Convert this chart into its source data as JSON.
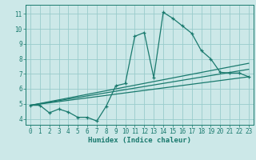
{
  "xlabel": "Humidex (Indice chaleur)",
  "bg_color": "#cce8e8",
  "grid_color": "#99cccc",
  "line_color": "#1a7a6e",
  "xlim": [
    -0.5,
    23.5
  ],
  "ylim": [
    3.6,
    11.6
  ],
  "xticks": [
    0,
    1,
    2,
    3,
    4,
    5,
    6,
    7,
    8,
    9,
    10,
    11,
    12,
    13,
    14,
    15,
    16,
    17,
    18,
    19,
    20,
    21,
    22,
    23
  ],
  "yticks": [
    4,
    5,
    6,
    7,
    8,
    9,
    10,
    11
  ],
  "line1_x": [
    0,
    1,
    2,
    3,
    4,
    5,
    6,
    7,
    8,
    9,
    10,
    11,
    12,
    13,
    14,
    15,
    16,
    17,
    18,
    19,
    20,
    21,
    22,
    23
  ],
  "line1_y": [
    4.9,
    4.9,
    4.4,
    4.65,
    4.45,
    4.1,
    4.1,
    3.85,
    4.85,
    6.2,
    6.35,
    9.5,
    9.75,
    6.75,
    11.1,
    10.7,
    10.2,
    9.7,
    8.55,
    8.0,
    7.1,
    7.05,
    7.05,
    6.8
  ],
  "line2_x": [
    0,
    23
  ],
  "line2_y": [
    4.9,
    7.3
  ],
  "line3_x": [
    0,
    23
  ],
  "line3_y": [
    4.9,
    6.8
  ],
  "line4_x": [
    0,
    23
  ],
  "line4_y": [
    4.9,
    7.7
  ]
}
